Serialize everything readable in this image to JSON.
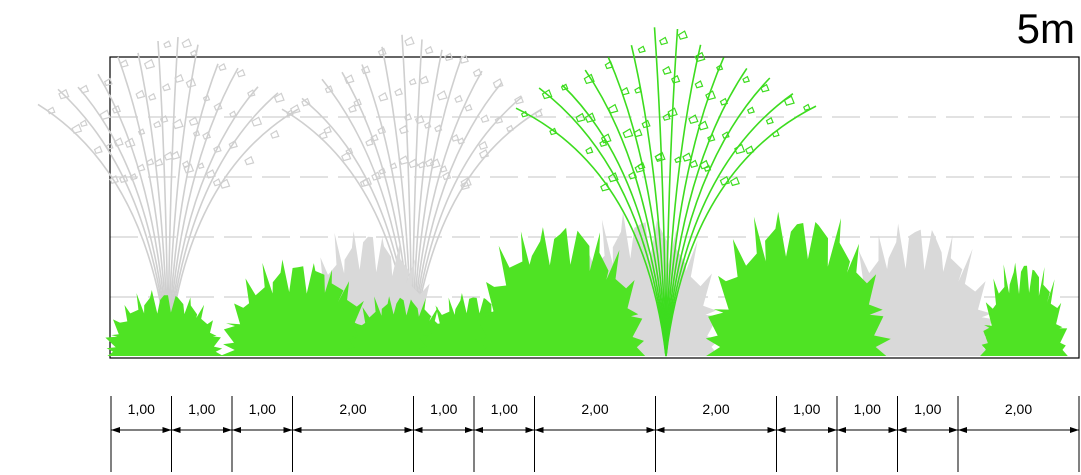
{
  "title": "5m",
  "colors": {
    "shrub_green": "#4fe324",
    "shrub_grey": "#d9d9d9",
    "tree_green": "#3ddc1f",
    "tree_grey": "#cfcfcf",
    "frame": "#000000",
    "guides": "#d0d0d0"
  },
  "dimensions": [
    "1,00",
    "1,00",
    "1,00",
    "2,00",
    "1,00",
    "1,00",
    "2,00",
    "2,00",
    "1,00",
    "1,00",
    "1,00",
    "2,00"
  ]
}
